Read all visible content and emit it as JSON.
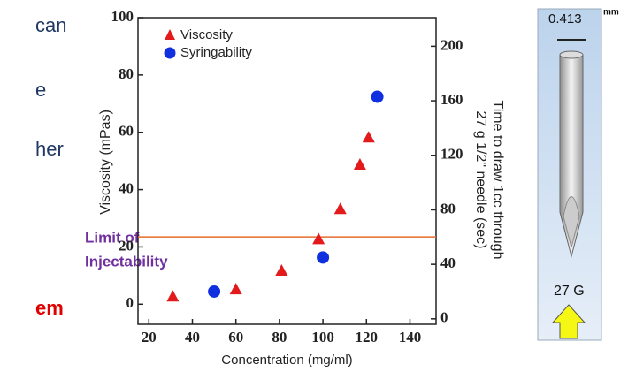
{
  "slide_fragments": [
    "can",
    "e",
    "her",
    "em"
  ],
  "annotation": [
    "Limit of",
    "Injectability"
  ],
  "needle": {
    "diameter": "0.413",
    "unit": "mm",
    "gauge": "27 G"
  },
  "chart_data": {
    "type": "scatter",
    "x_label": "Concentration (mg/ml)",
    "y_label": "Viscosity (mPas)",
    "y2_label": [
      "Time to draw 1cc through",
      "27 g 1/2\" needle (sec)"
    ],
    "xlim": [
      15,
      152
    ],
    "xticks": [
      20,
      40,
      60,
      80,
      100,
      120,
      140
    ],
    "ylim": [
      -7,
      100
    ],
    "yticks": [
      0,
      20,
      40,
      60,
      80,
      100
    ],
    "y2lim": [
      -4,
      221
    ],
    "y2ticks": [
      0,
      40,
      80,
      120,
      160,
      200
    ],
    "limit_line": {
      "value": 23.5,
      "color": "#e36c2c"
    },
    "legend": "upper left",
    "series": [
      {
        "name": "Viscosity",
        "color": "#e31a1c",
        "marker": "triangle",
        "x": [
          31,
          60,
          81,
          98,
          108,
          117,
          121
        ],
        "values": [
          2.5,
          5,
          11.5,
          22.5,
          33,
          48.5,
          58
        ]
      },
      {
        "name": "Syringability",
        "color": "#1030e0",
        "marker": "circle",
        "axis": "y2",
        "x": [
          50,
          100,
          125
        ],
        "values": [
          20,
          45,
          163
        ]
      }
    ]
  }
}
